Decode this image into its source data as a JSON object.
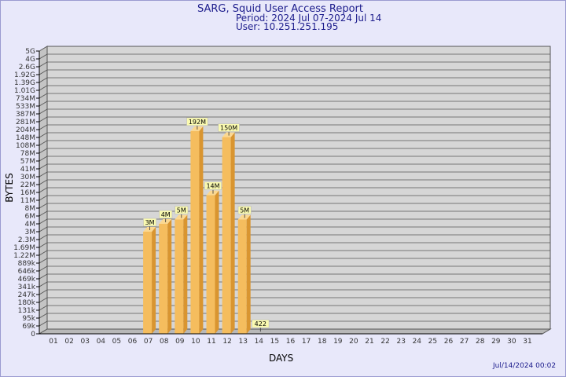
{
  "header": {
    "title": "SARG, Squid User Access Report",
    "period": "Period: 2024 Jul 07-2024 Jul 14",
    "user": "User: 10.251.251.195"
  },
  "footer": {
    "timestamp": "Jul/14/2024 00:02"
  },
  "colors": {
    "bar_front": "#f5bd5e",
    "bar_side": "#d99530",
    "bar_top": "#fbd891",
    "plot_bg": "#d6d6d6",
    "label_bg": "#fafab0"
  },
  "chart_data": {
    "type": "bar",
    "xlabel": "DAYS",
    "ylabel": "BYTES",
    "grid": true,
    "y_ticks": [
      "5G",
      "4G",
      "2.6G",
      "1.92G",
      "1.39G",
      "1.01G",
      "734M",
      "533M",
      "387M",
      "281M",
      "204M",
      "148M",
      "108M",
      "78M",
      "57M",
      "41M",
      "30M",
      "22M",
      "16M",
      "11M",
      "8M",
      "6M",
      "4M",
      "3M",
      "2.3M",
      "1.69M",
      "1.22M",
      "889k",
      "646k",
      "469k",
      "341k",
      "247k",
      "180k",
      "131k",
      "95k",
      "69k",
      "0"
    ],
    "categories": [
      "01",
      "02",
      "03",
      "04",
      "05",
      "06",
      "07",
      "08",
      "09",
      "10",
      "11",
      "12",
      "13",
      "14",
      "15",
      "16",
      "17",
      "18",
      "19",
      "20",
      "21",
      "22",
      "23",
      "24",
      "25",
      "26",
      "27",
      "28",
      "29",
      "30",
      "31"
    ],
    "bars": [
      {
        "day": "07",
        "label": "3M"
      },
      {
        "day": "08",
        "label": "4M"
      },
      {
        "day": "09",
        "label": "5M"
      },
      {
        "day": "10",
        "label": "192M"
      },
      {
        "day": "11",
        "label": "14M"
      },
      {
        "day": "12",
        "label": "150M"
      },
      {
        "day": "13",
        "label": "5M"
      },
      {
        "day": "14",
        "label": "422"
      }
    ]
  }
}
